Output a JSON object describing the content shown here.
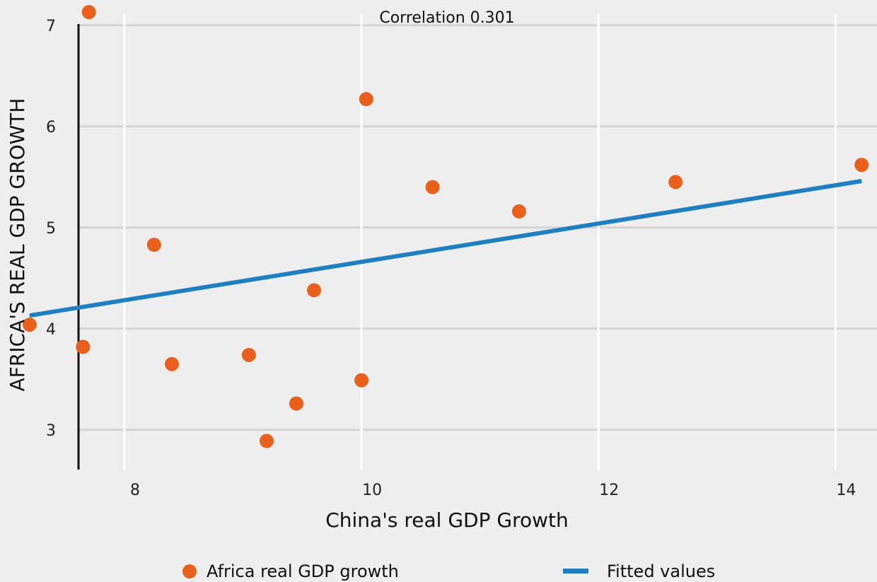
{
  "chart_data": {
    "type": "scatter",
    "title": "Correlation 0.301",
    "xlabel": "China's real GDP Growth",
    "ylabel": "AFRICA'S REAL GDP GROWTH",
    "xlim": [
      6.95,
      14.35
    ],
    "ylim": [
      2.6,
      7.25
    ],
    "x_ticks": [
      8,
      10,
      12,
      14
    ],
    "y_ticks": [
      3,
      4,
      5,
      6,
      7
    ],
    "x_grid": true,
    "y_grid": true,
    "legend_position": "bottom",
    "series": [
      {
        "name": "Africa real GDP growth",
        "type": "scatter",
        "color": "#e8601c",
        "points": [
          {
            "x": 7.7,
            "y": 7.13
          },
          {
            "x": 10.04,
            "y": 6.27
          },
          {
            "x": 14.22,
            "y": 5.62
          },
          {
            "x": 12.65,
            "y": 5.45
          },
          {
            "x": 10.6,
            "y": 5.4
          },
          {
            "x": 11.33,
            "y": 5.16
          },
          {
            "x": 8.25,
            "y": 4.83
          },
          {
            "x": 9.6,
            "y": 4.38
          },
          {
            "x": 7.2,
            "y": 4.04
          },
          {
            "x": 7.65,
            "y": 3.82
          },
          {
            "x": 8.4,
            "y": 3.65
          },
          {
            "x": 9.05,
            "y": 3.74
          },
          {
            "x": 10.0,
            "y": 3.49
          },
          {
            "x": 9.45,
            "y": 3.26
          },
          {
            "x": 9.2,
            "y": 2.89
          }
        ]
      },
      {
        "name": "Fitted values",
        "type": "line",
        "color": "#1f7fc0",
        "points": [
          {
            "x": 7.2,
            "y": 4.13
          },
          {
            "x": 14.22,
            "y": 5.46
          }
        ]
      }
    ]
  }
}
